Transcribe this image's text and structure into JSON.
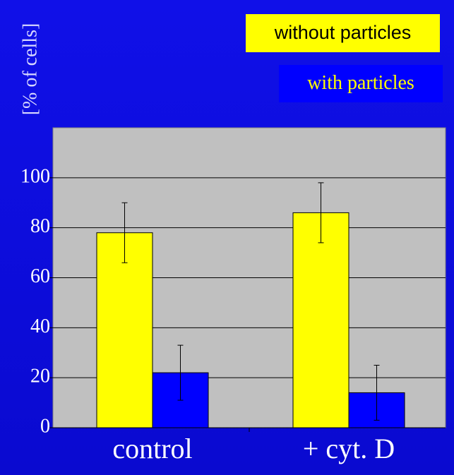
{
  "chart_data": {
    "type": "bar",
    "y_label": "[% of cells]",
    "categories": [
      "control",
      "+ cyt. D"
    ],
    "series": [
      {
        "name": "without particles",
        "color": "#ffff00",
        "values": [
          78,
          86
        ],
        "errors": [
          12,
          12
        ]
      },
      {
        "name": "with particles",
        "color": "#0000ff",
        "values": [
          22,
          14
        ],
        "errors": [
          11,
          11
        ]
      }
    ],
    "ylim": [
      0,
      120
    ],
    "yticks": [
      0,
      20,
      40,
      60,
      80,
      100
    ],
    "grid": true
  }
}
